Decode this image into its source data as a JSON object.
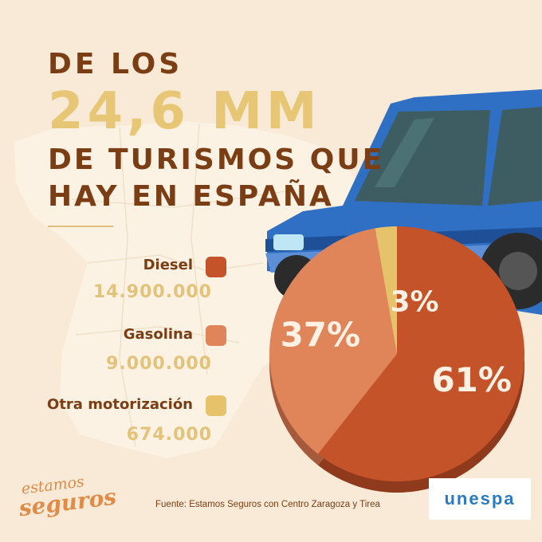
{
  "title": {
    "line1": "DE LOS",
    "line2": "24,6 MM",
    "line3": "DE TURISMOS QUE",
    "line4": "HAY EN ESPAÑA"
  },
  "legend": [
    {
      "label": "Diesel",
      "value": "14.900.000",
      "color": "#c5532a"
    },
    {
      "label": "Gasolina",
      "value": "9.000.000",
      "color": "#e0845a"
    },
    {
      "label": "Otra motorización",
      "value": "674.000",
      "color": "#e6c26a"
    }
  ],
  "source": "Fuente: Estamos Seguros con Centro Zaragoza y Tirea",
  "brand": {
    "line1": "estamos",
    "line2": "seguros"
  },
  "logo": "unespa",
  "colors": {
    "background": "#f8ead6",
    "title_dark": "#7a3d14",
    "title_gold": "#e7c676",
    "car": "#2f6fc4"
  },
  "chart_data": {
    "type": "pie",
    "categories": [
      "Diesel",
      "Gasolina",
      "Otra motorización"
    ],
    "values": [
      14900000,
      9000000,
      674000
    ],
    "percent_labels": [
      "61%",
      "37%",
      "3%"
    ],
    "colors": [
      "#c5532a",
      "#e0845a",
      "#e6c26a"
    ],
    "legend_position": "left"
  }
}
